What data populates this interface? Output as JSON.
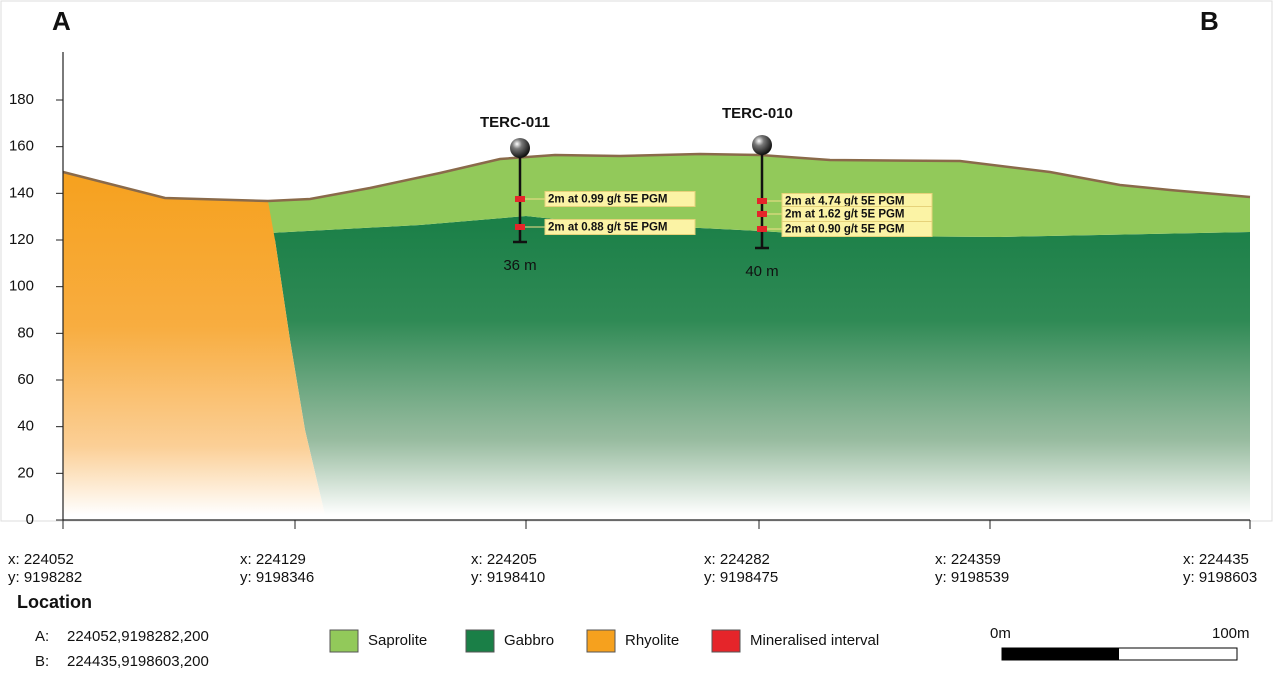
{
  "section": {
    "start_label": "A",
    "end_label": "B"
  },
  "y_axis": {
    "ticks": [
      0,
      20,
      40,
      60,
      80,
      100,
      120,
      140,
      160,
      180
    ]
  },
  "x_axis": {
    "ticks": [
      {
        "x": "x: 224052",
        "y": "y: 9198282"
      },
      {
        "x": "x: 224129",
        "y": "y: 9198346"
      },
      {
        "x": "x: 224205",
        "y": "y: 9198410"
      },
      {
        "x": "x: 224282",
        "y": "y: 9198475"
      },
      {
        "x": "x: 224359",
        "y": "y: 9198539"
      },
      {
        "x": "x: 224435",
        "y": "y: 9198603"
      }
    ]
  },
  "drillholes": [
    {
      "name": "TERC-011",
      "depth": "36 m",
      "intervals": [
        "2m at 0.99 g/t 5E PGM",
        "2m at 0.88 g/t 5E PGM"
      ]
    },
    {
      "name": "TERC-010",
      "depth": "40 m",
      "intervals": [
        "2m at 4.74 g/t 5E PGM",
        "2m at 1.62 g/t 5E PGM",
        "2m at 0.90 g/t 5E PGM"
      ]
    }
  ],
  "location": {
    "title": "Location",
    "rows": [
      {
        "key": "A:",
        "value": "224052,9198282,200"
      },
      {
        "key": "B:",
        "value": "224435,9198603,200"
      }
    ]
  },
  "legend": [
    {
      "label": "Saprolite",
      "color": "#92c95a"
    },
    {
      "label": "Gabbro",
      "color": "#1a7f47"
    },
    {
      "label": "Rhyolite",
      "color": "#f6a11e"
    },
    {
      "label": "Mineralised interval",
      "color": "#e5252a"
    }
  ],
  "scale_bar": {
    "start": "0m",
    "end": "100m"
  }
}
